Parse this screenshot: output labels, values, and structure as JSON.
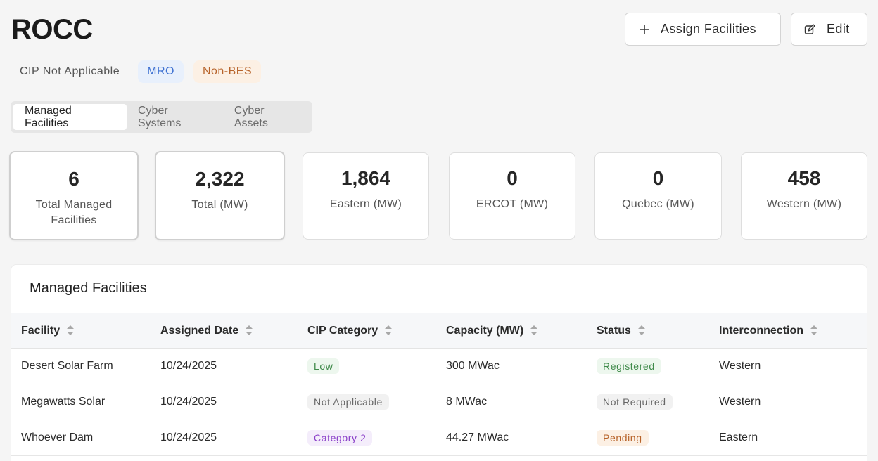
{
  "page": {
    "title": "ROCC"
  },
  "actions": {
    "assign_label": "Assign Facilities",
    "assign_icon": "plus-icon",
    "edit_label": "Edit",
    "edit_icon": "edit-icon"
  },
  "tags": {
    "cip": "CIP Not Applicable",
    "region": "MRO",
    "bes": "Non-BES"
  },
  "tabs": [
    {
      "label": "Managed Facilities",
      "active": true
    },
    {
      "label": "Cyber Systems",
      "active": false
    },
    {
      "label": "Cyber Assets",
      "active": false
    }
  ],
  "stats": [
    {
      "value": "6",
      "label": "Total Managed Facilities"
    },
    {
      "value": "2,322",
      "label": "Total (MW)"
    },
    {
      "value": "1,864",
      "label": "Eastern (MW)"
    },
    {
      "value": "0",
      "label": "ERCOT (MW)"
    },
    {
      "value": "0",
      "label": "Quebec (MW)"
    },
    {
      "value": "458",
      "label": "Western (MW)"
    }
  ],
  "facilities": {
    "title": "Managed Facilities",
    "columns": [
      "Facility",
      "Assigned Date",
      "CIP Category",
      "Capacity (MW)",
      "Status",
      "Interconnection"
    ],
    "rows": [
      {
        "facility": "Desert Solar Farm",
        "date": "10/24/2025",
        "cip": "Low",
        "capacity": "300 MWac",
        "status": "Registered",
        "interconnection": "Western"
      },
      {
        "facility": "Megawatts Solar",
        "date": "10/24/2025",
        "cip": "Not Applicable",
        "capacity": "8 MWac",
        "status": "Not Required",
        "interconnection": "Western"
      },
      {
        "facility": "Whoever Dam",
        "date": "10/24/2025",
        "cip": "Category 2",
        "capacity": "44.27 MWac",
        "status": "Pending",
        "interconnection": "Eastern"
      }
    ]
  },
  "colors": {
    "mro": "#3b6fd1",
    "non_bes": "#b7632a",
    "low": "#3f8a4a",
    "category_2": "#8a3fc9",
    "pending": "#b7632a"
  }
}
